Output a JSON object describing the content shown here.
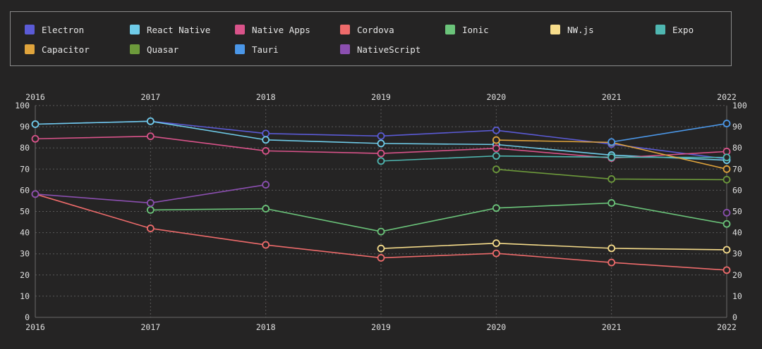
{
  "chart_data": {
    "type": "line",
    "title": "",
    "xlabel": "",
    "ylabel": "",
    "x": [
      2016,
      2017,
      2018,
      2019,
      2020,
      2021,
      2022
    ],
    "ylim": [
      0,
      100
    ],
    "yticks": [
      0,
      10,
      20,
      30,
      40,
      50,
      60,
      70,
      80,
      90,
      100
    ],
    "grid": true,
    "legend": "top",
    "series": [
      {
        "name": "Electron",
        "color": "#5b5bd6",
        "values": [
          91.2,
          92.6,
          86.8,
          85.6,
          88.3,
          81.8,
          74.8
        ]
      },
      {
        "name": "React Native",
        "color": "#6fcbe8",
        "values": [
          91.2,
          92.6,
          83.8,
          82.1,
          81.6,
          76.6,
          74.2
        ]
      },
      {
        "name": "Native Apps",
        "color": "#d9538a",
        "values": [
          84.3,
          85.5,
          78.6,
          77.4,
          79.8,
          75.2,
          78.3
        ]
      },
      {
        "name": "Cordova",
        "color": "#ee6b6b",
        "values": [
          58.2,
          42.0,
          34.2,
          28.1,
          30.2,
          25.9,
          22.3
        ]
      },
      {
        "name": "Ionic",
        "color": "#6bc47a",
        "values": [
          null,
          50.7,
          51.3,
          40.5,
          51.6,
          54.0,
          44.1
        ]
      },
      {
        "name": "NW.js",
        "color": "#f7dd8b",
        "values": [
          null,
          null,
          null,
          32.5,
          35.0,
          32.6,
          31.9
        ]
      },
      {
        "name": "Expo",
        "color": "#4fb7b1",
        "values": [
          null,
          null,
          null,
          73.8,
          76.2,
          75.6,
          75.5
        ]
      },
      {
        "name": "Capacitor",
        "color": "#e0a43c",
        "values": [
          null,
          null,
          null,
          null,
          83.7,
          82.6,
          70.0
        ]
      },
      {
        "name": "Quasar",
        "color": "#6d9a3b",
        "values": [
          null,
          null,
          null,
          null,
          69.9,
          65.3,
          65.0
        ]
      },
      {
        "name": "Tauri",
        "color": "#4b97e8",
        "values": [
          null,
          null,
          null,
          null,
          null,
          82.8,
          91.5
        ]
      },
      {
        "name": "NativeScript",
        "color": "#8b4fb0",
        "values": [
          58.2,
          54.0,
          62.6,
          null,
          null,
          null,
          49.4
        ]
      }
    ]
  }
}
